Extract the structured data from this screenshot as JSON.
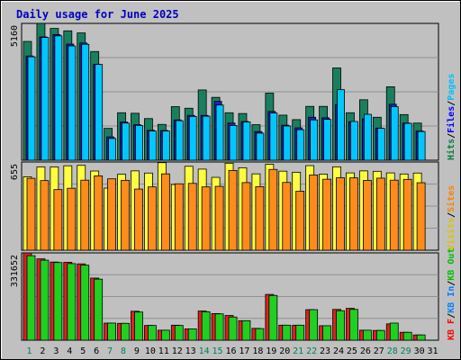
{
  "chart_data": {
    "type": "bar",
    "title": "Daily usage for June 2025",
    "x": [
      "1",
      "2",
      "3",
      "4",
      "5",
      "6",
      "7",
      "8",
      "9",
      "10",
      "11",
      "12",
      "13",
      "14",
      "15",
      "16",
      "17",
      "18",
      "19",
      "20",
      "21",
      "22",
      "23",
      "24",
      "25",
      "26",
      "27",
      "28",
      "29",
      "30",
      "31"
    ],
    "weekend_days": [
      "1",
      "7",
      "8",
      "14",
      "15",
      "21",
      "22",
      "28",
      "29"
    ],
    "panels": [
      {
        "name": "top",
        "y_max_label": "5160",
        "y_max": 5160,
        "legend": [
          {
            "text": "Hits",
            "color": "#008040"
          },
          {
            "text": "Files",
            "color": "#0000ff"
          },
          {
            "text": "Pages",
            "color": "#00c0ff"
          }
        ],
        "series": [
          {
            "name": "Hits",
            "color": "#1a7f5f",
            "values": [
              4480,
              5160,
              4970,
              4880,
              4800,
              4100,
              1200,
              1790,
              1770,
              1570,
              1350,
              2020,
              1960,
              2650,
              2370,
              1790,
              1760,
              1340,
              2530,
              1700,
              1530,
              2030,
              2030,
              3480,
              1790,
              2280,
              1620,
              2770,
              1720,
              1400,
              null
            ]
          },
          {
            "name": "Files",
            "color": "#2020c0",
            "values": [
              3930,
              4650,
              4740,
              4380,
              4420,
              3620,
              880,
              1440,
              1340,
              1130,
              1120,
              1520,
              1690,
              1690,
              2220,
              1400,
              1460,
              1080,
              1840,
              1320,
              1220,
              1620,
              1600,
              2100,
              1450,
              1560,
              1210,
              2110,
              1400,
              1100,
              null
            ]
          },
          {
            "name": "Pages",
            "color": "#00c8ff",
            "values": [
              3900,
              4630,
              4690,
              4310,
              4370,
              3610,
              820,
              1400,
              1310,
              1100,
              1100,
              1490,
              1650,
              1660,
              2080,
              1310,
              1440,
              1020,
              1780,
              1290,
              1150,
              1520,
              1540,
              2660,
              1460,
              1730,
              1200,
              2020,
              1390,
              1080,
              null
            ]
          }
        ]
      },
      {
        "name": "middle",
        "y_max_label": "655",
        "y_max": 655,
        "legend": [
          {
            "text": "Visits",
            "color": "#e0c000"
          },
          {
            "text": "Sites",
            "color": "#ff8000"
          }
        ],
        "series": [
          {
            "name": "Visits",
            "color": "#ffff40",
            "values": [
              545,
              618,
              618,
              627,
              630,
              588,
              461,
              564,
              589,
              573,
              650,
              488,
              623,
              602,
              541,
              646,
              612,
              567,
              638,
              587,
              579,
              628,
              565,
              619,
              574,
              589,
              586,
              574,
              566,
              573,
              null
            ]
          },
          {
            "name": "Sites",
            "color": "#ff8c1a",
            "values": [
              534,
              517,
              450,
              460,
              520,
              552,
              530,
              519,
              454,
              470,
              567,
              493,
              496,
              470,
              474,
              592,
              502,
              472,
              600,
              503,
              438,
              559,
              527,
              538,
              537,
              518,
              535,
              520,
              526,
              501,
              null
            ]
          }
        ]
      },
      {
        "name": "bottom",
        "y_max_label": "331652",
        "y_max": 331652,
        "legend": [
          {
            "text": "KB F",
            "color": "#ff0000"
          },
          {
            "text": "KB In",
            "color": "#0080ff"
          },
          {
            "text": "KB Out",
            "color": "#00c000"
          }
        ],
        "series": [
          {
            "name": "KB F",
            "color": "#e02020",
            "values": [
              331652,
              309000,
              297000,
              296000,
              290000,
              236000,
              65000,
              64000,
              110000,
              56000,
              38000,
              57000,
              43000,
              111000,
              101000,
              94000,
              74000,
              45000,
              174000,
              57000,
              57000,
              116000,
              55000,
              117000,
              121000,
              38000,
              37000,
              62000,
              30000,
              20000,
              null
            ]
          },
          {
            "name": "KB Out",
            "color": "#20d020",
            "values": [
              321000,
              304000,
              295000,
              291000,
              285000,
              232000,
              65000,
              64000,
              107000,
              56000,
              38000,
              56000,
              43000,
              108000,
              100000,
              88000,
              74000,
              44000,
              170000,
              57000,
              57000,
              116000,
              55000,
              112000,
              117000,
              38000,
              37000,
              65000,
              30000,
              20000,
              null
            ]
          }
        ]
      }
    ]
  }
}
